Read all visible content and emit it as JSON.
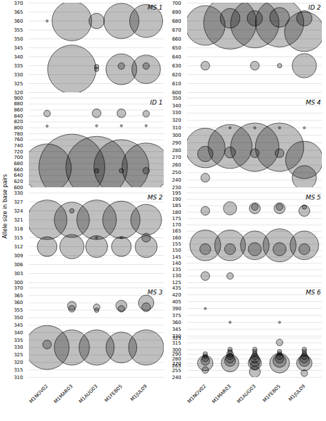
{
  "chart_data": {
    "type": "bubble",
    "ylabel": "Allele size in base pairs",
    "categories": [
      "M1NOV02",
      "M1MAR03",
      "M1AUG03",
      "M1FEB05",
      "M1JUL09"
    ],
    "grid": true,
    "panels": [
      {
        "title": "MS 1",
        "ylim": [
          320,
          370
        ],
        "yticks": [
          320,
          325,
          330,
          335,
          340,
          345,
          350,
          355,
          360,
          365,
          370
        ],
        "tick_labels": "y",
        "x": [
          "M1NOV02",
          "M1MAR03",
          "M1MAR03",
          "M1AUG03",
          "M1AUG03",
          "M1AUG03",
          "M1FEB05",
          "M1FEB05",
          "M1FEB05",
          "M1JUL09",
          "M1JUL09",
          "M1JUL09"
        ],
        "y": [
          360,
          360,
          333,
          360,
          333,
          334.5,
          360,
          333,
          334.8,
          360,
          333,
          334.8
        ],
        "sizes": [
          1,
          18,
          22,
          7,
          2,
          2,
          16,
          14,
          3,
          15,
          13,
          3
        ]
      },
      {
        "title": "ID 2",
        "ylim": [
          600,
          700
        ],
        "yticks": [
          600,
          610,
          620,
          630,
          640,
          650,
          660,
          670,
          680,
          690,
          700
        ],
        "tick_labels": "y",
        "x": [
          "M1NOV02",
          "M1NOV02",
          "M1MAR03",
          "M1MAR03",
          "M1AUG03",
          "M1AUG03",
          "M1AUG03",
          "M1FEB05",
          "M1FEB05",
          "M1FEB05",
          "M1JUL09",
          "M1JUL09",
          "M1JUL09"
        ],
        "y": [
          675,
          630,
          678,
          683,
          677,
          683,
          630,
          678,
          684,
          630,
          668,
          683,
          630
        ],
        "sizes": [
          18,
          4,
          24,
          9,
          22,
          7,
          4,
          22,
          9,
          2,
          18,
          7,
          11
        ]
      },
      {
        "title": "ID 1",
        "ylim": [
          600,
          900
        ],
        "yticks": [
          600,
          620,
          640,
          660,
          680,
          700,
          720,
          740,
          760,
          780,
          800,
          820,
          840,
          860,
          880,
          900
        ],
        "tick_labels": "y",
        "x": [
          "M1NOV02",
          "M1NOV02",
          "M1NOV02",
          "M1MAR03",
          "M1AUG03",
          "M1AUG03",
          "M1AUG03",
          "M1AUG03",
          "M1FEB05",
          "M1FEB05",
          "M1FEB05",
          "M1FEB05",
          "M1JUL09",
          "M1JUL09",
          "M1JUL09",
          "M1JUL09"
        ],
        "y": [
          848,
          806,
          665,
          668,
          849,
          807,
          668,
          656,
          849,
          807,
          668,
          656,
          847,
          807,
          668,
          656
        ],
        "sizes": [
          3,
          1,
          22,
          30,
          4,
          1,
          28,
          2,
          4,
          1,
          25,
          2,
          3,
          1,
          22,
          3
        ]
      },
      {
        "title": "MS 4",
        "ylim": [
          230,
          350
        ],
        "yticks": [
          230,
          240,
          250,
          260,
          270,
          280,
          290,
          300,
          310,
          320,
          330,
          340,
          350
        ],
        "tick_labels": "y",
        "x": [
          "M1NOV02",
          "M1NOV02",
          "M1NOV02",
          "M1MAR03",
          "M1MAR03",
          "M1MAR03",
          "M1AUG03",
          "M1AUG03",
          "M1AUG03",
          "M1FEB05",
          "M1FEB05",
          "M1FEB05",
          "M1JUL09",
          "M1JUL09",
          "M1JUL09"
        ],
        "y": [
          283,
          275,
          243,
          285,
          277,
          310,
          284,
          276,
          310,
          284,
          276,
          310,
          267,
          243,
          310
        ],
        "sizes": [
          18,
          7,
          4,
          20,
          5,
          1,
          22,
          4,
          1,
          22,
          4,
          1,
          17,
          11,
          1
        ]
      },
      {
        "title": "MS 2",
        "ylim": [
          300,
          330
        ],
        "yticks": [
          300,
          303,
          306,
          309,
          312,
          315,
          318,
          321,
          324,
          327,
          330
        ],
        "tick_labels": "y",
        "x": [
          "M1NOV02",
          "M1NOV02",
          "M1MAR03",
          "M1MAR03",
          "M1MAR03",
          "M1AUG03",
          "M1AUG03",
          "M1AUG03",
          "M1FEB05",
          "M1FEB05",
          "M1FEB05",
          "M1JUL09",
          "M1JUL09",
          "M1JUL09"
        ],
        "y": [
          321,
          312,
          321,
          312,
          324,
          321,
          312,
          315,
          321,
          312,
          315,
          321,
          312,
          315
        ],
        "sizes": [
          18,
          9,
          16,
          11,
          2,
          18,
          10,
          1,
          17,
          9,
          1,
          14,
          10,
          4
        ]
      },
      {
        "title": "MS 5",
        "ylim": [
          125,
          195
        ],
        "yticks": [
          125,
          130,
          135,
          140,
          145,
          150,
          155,
          160,
          165,
          170,
          175,
          180,
          185,
          190,
          195
        ],
        "tick_labels": "y",
        "x": [
          "M1NOV02",
          "M1NOV02",
          "M1NOV02",
          "M1NOV02",
          "M1MAR03",
          "M1MAR03",
          "M1MAR03",
          "M1MAR03",
          "M1AUG03",
          "M1AUG03",
          "M1AUG03",
          "M1AUG03",
          "M1FEB05",
          "M1FEB05",
          "M1FEB05",
          "M1FEB05",
          "M1JUL09",
          "M1JUL09",
          "M1JUL09",
          "M1JUL09"
        ],
        "y": [
          181,
          154,
          151,
          130,
          183,
          154,
          151,
          130,
          183,
          184,
          154,
          151,
          183,
          184,
          154,
          151,
          181,
          184,
          154,
          151
        ],
        "sizes": [
          4,
          14,
          5,
          4,
          6,
          14,
          5,
          3,
          5,
          3,
          13,
          6,
          5,
          3,
          15,
          6,
          5,
          2,
          13,
          5
        ]
      },
      {
        "title": "MS 3",
        "ylim": [
          310,
          370
        ],
        "yticks": [
          310,
          315,
          320,
          325,
          330,
          335,
          340,
          345,
          350,
          355,
          360,
          365,
          370
        ],
        "x": [
          "M1NOV02",
          "M1NOV02",
          "M1MAR03",
          "M1MAR03",
          "M1MAR03",
          "M1AUG03",
          "M1AUG03",
          "M1AUG03",
          "M1FEB05",
          "M1FEB05",
          "M1FEB05",
          "M1JUL09",
          "M1JUL09",
          "M1JUL09"
        ],
        "y": [
          330,
          332,
          330,
          358,
          356,
          330,
          357,
          355,
          330,
          358,
          356,
          330,
          360,
          357
        ],
        "sizes": [
          20,
          4,
          16,
          4,
          3,
          16,
          3,
          2,
          14,
          5,
          3,
          16,
          7,
          4
        ]
      },
      {
        "title": "MS 6",
        "ylim": [
          240,
          435
        ],
        "yticks": [
          240,
          255,
          265,
          270,
          280,
          290,
          300,
          315,
          325,
          330,
          345,
          360,
          375,
          390,
          405,
          420,
          435
        ],
        "x": [
          "M1NOV02",
          "M1NOV02",
          "M1NOV02",
          "M1NOV02",
          "M1NOV02",
          "M1NOV02",
          "M1NOV02",
          "M1MAR03",
          "M1MAR03",
          "M1MAR03",
          "M1MAR03",
          "M1MAR03",
          "M1MAR03",
          "M1MAR03",
          "M1MAR03",
          "M1AUG03",
          "M1AUG03",
          "M1AUG03",
          "M1AUG03",
          "M1AUG03",
          "M1AUG03",
          "M1AUG03",
          "M1AUG03",
          "M1AUG03",
          "M1FEB05",
          "M1FEB05",
          "M1FEB05",
          "M1FEB05",
          "M1FEB05",
          "M1FEB05",
          "M1FEB05",
          "M1FEB05",
          "M1JUL09",
          "M1JUL09",
          "M1JUL09",
          "M1JUL09",
          "M1JUL09",
          "M1JUL09",
          "M1JUL09",
          "M1JUL09"
        ],
        "y": [
          271,
          276,
          281,
          286,
          291,
          256,
          390,
          271,
          276,
          281,
          286,
          291,
          296,
          301,
          360,
          252,
          266,
          271,
          276,
          281,
          286,
          291,
          296,
          301,
          271,
          276,
          281,
          286,
          291,
          296,
          316,
          360,
          271,
          276,
          281,
          286,
          291,
          296,
          301,
          249
        ],
        "sizes": [
          7,
          4,
          3,
          2,
          2,
          3,
          1,
          8,
          5,
          4,
          3,
          3,
          2,
          2,
          1,
          5,
          4,
          6,
          5,
          4,
          3,
          2,
          2,
          2,
          9,
          6,
          4,
          3,
          2,
          2,
          3,
          1,
          7,
          5,
          4,
          3,
          2,
          2,
          2,
          3
        ]
      }
    ]
  }
}
